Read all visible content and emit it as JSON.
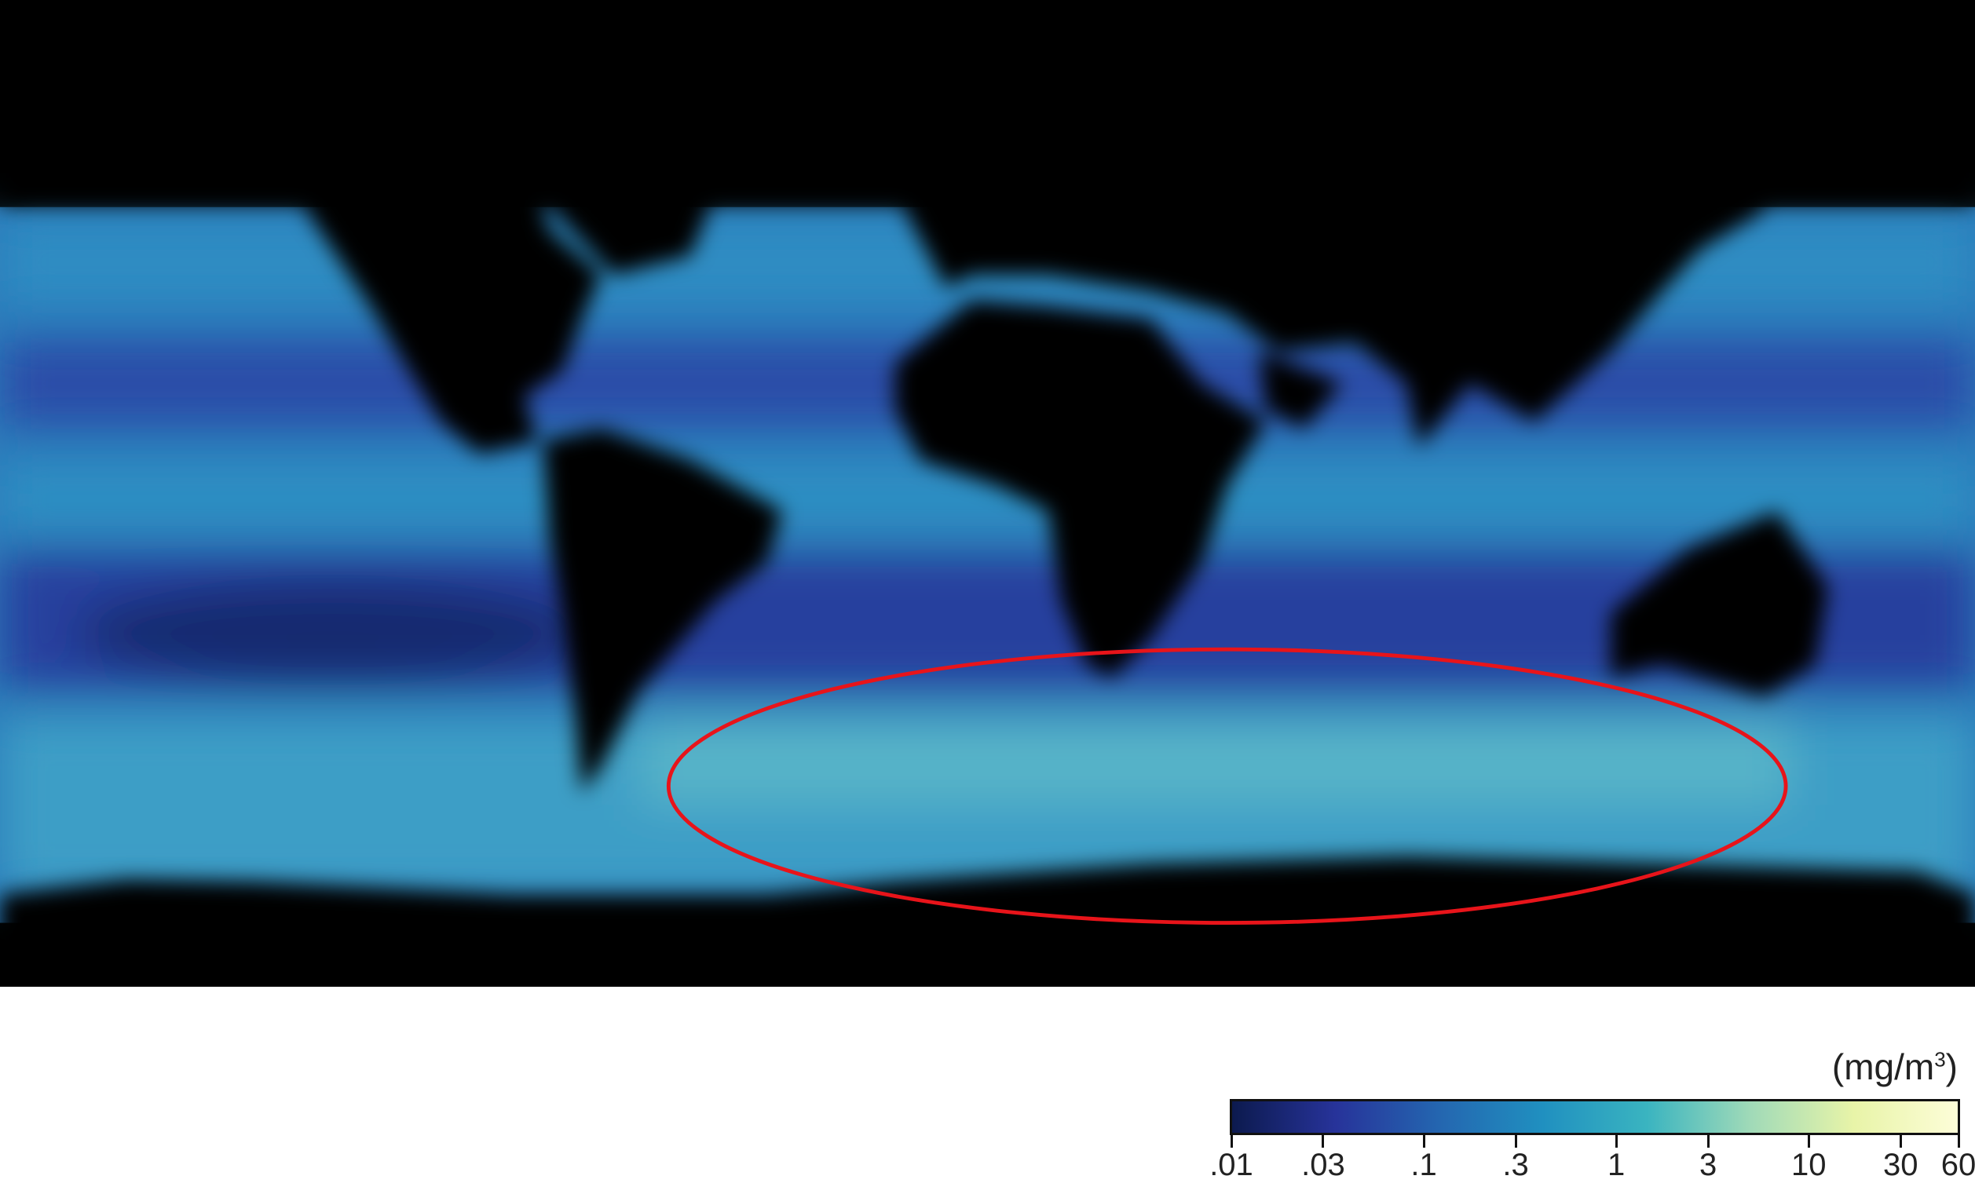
{
  "map": {
    "type": "global ocean chlorophyll concentration map",
    "projection": "equirectangular",
    "land_color": "#000000",
    "annotation": {
      "shape": "ellipse",
      "color": "#e8141a",
      "region": "Southern Ocean south of Africa and Indian Ocean"
    }
  },
  "legend": {
    "unit": "(mg/m",
    "unit_sup": "3",
    "unit_close": ")",
    "scale": "log",
    "range": [
      0.01,
      60
    ],
    "ticks": [
      {
        "label": ".01",
        "value": 0.01
      },
      {
        "label": ".03",
        "value": 0.03
      },
      {
        "label": ".1",
        "value": 0.1
      },
      {
        "label": ".3",
        "value": 0.3
      },
      {
        "label": "1",
        "value": 1
      },
      {
        "label": "3",
        "value": 3
      },
      {
        "label": "10",
        "value": 10
      },
      {
        "label": "30",
        "value": 30
      },
      {
        "label": "60",
        "value": 60
      }
    ],
    "colors": [
      "#0c1a4e",
      "#27339a",
      "#2466b0",
      "#2090c0",
      "#3ab4c0",
      "#a0dab8",
      "#e8f4a8",
      "#fdfdd8"
    ]
  }
}
